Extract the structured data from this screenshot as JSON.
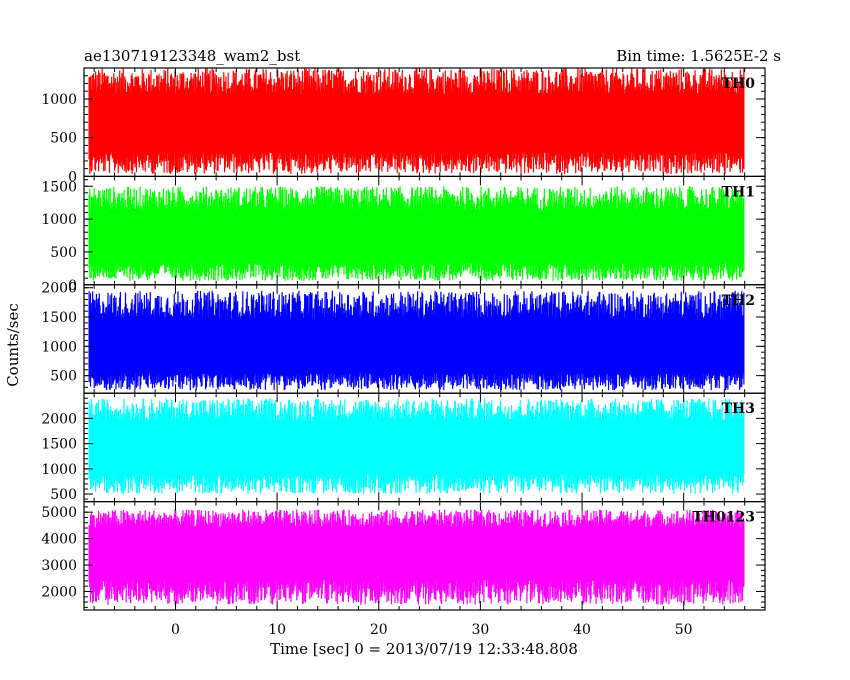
{
  "header": {
    "title": "ae130719123348_wam2_bst",
    "bin_time": "Bin time: 1.5625E-2 s"
  },
  "chart_data": {
    "type": "line",
    "xlabel": "Time [sec] 0 = 2013/07/19 12:33:48.808",
    "ylabel": "Counts/sec",
    "xlim": [
      -9,
      58
    ],
    "x_ticks": [
      0,
      10,
      20,
      30,
      40,
      50
    ],
    "x_start": -8.5,
    "x_end": 56.0,
    "panels": [
      {
        "name": "TH0",
        "color": "#ff0000",
        "ylim": [
          0,
          1400
        ],
        "yticks": [
          0,
          500,
          1000
        ],
        "mean": 650,
        "low": 30,
        "high": 1400
      },
      {
        "name": "TH1",
        "color": "#00ff00",
        "ylim": [
          0,
          1650
        ],
        "yticks": [
          0,
          500,
          1000,
          1500
        ],
        "mean": 680,
        "low": 60,
        "high": 1500
      },
      {
        "name": "TH2",
        "color": "#0000ff",
        "ylim": [
          200,
          2050
        ],
        "yticks": [
          500,
          1000,
          1500,
          2000
        ],
        "mean": 900,
        "low": 250,
        "high": 1950
      },
      {
        "name": "TH3",
        "color": "#00ffff",
        "ylim": [
          350,
          2500
        ],
        "yticks": [
          500,
          1000,
          1500,
          2000
        ],
        "mean": 1400,
        "low": 500,
        "high": 2400
      },
      {
        "name": "TH0123",
        "color": "#ff00ff",
        "ylim": [
          1300,
          5400
        ],
        "yticks": [
          2000,
          3000,
          4000,
          5000
        ],
        "mean": 3600,
        "low": 1500,
        "high": 5100
      }
    ]
  }
}
